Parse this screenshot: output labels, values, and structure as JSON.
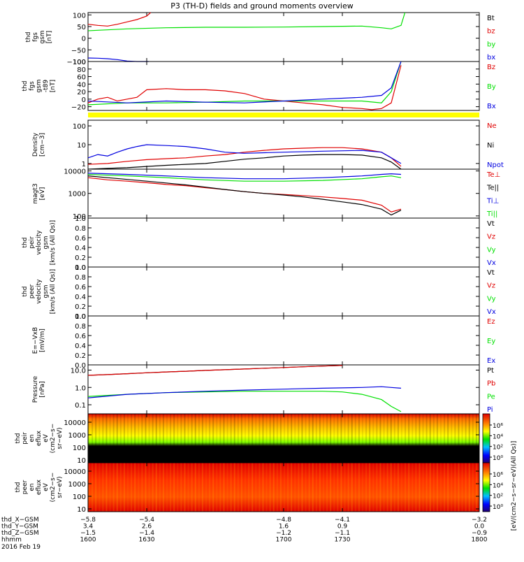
{
  "title": "P3 (TH-D) fields and ground moments overview",
  "colors": {
    "black": "#000000",
    "red": "#e00000",
    "green": "#00e000",
    "blue": "#0000e0",
    "yellow": "#ffff00"
  },
  "chart_data": [
    {
      "type": "line",
      "ylabel": [
        "thd",
        "fgs",
        "gsm",
        "[nT]"
      ],
      "yticks": [
        "100",
        "50",
        "0",
        "−50",
        "−100"
      ],
      "ylim": [
        -100,
        110
      ],
      "legend": [
        {
          "name": "Bt",
          "color": "black"
        },
        {
          "name": "bz",
          "color": "red"
        },
        {
          "name": "by",
          "color": "green"
        },
        {
          "name": "bx",
          "color": "blue"
        }
      ],
      "series": [
        {
          "name": "bz",
          "color": "red",
          "x": [
            1600,
            1605,
            1610,
            1615,
            1620,
            1625,
            1630,
            1632
          ],
          "y": [
            60,
            55,
            52,
            60,
            70,
            80,
            95,
            110
          ]
        },
        {
          "name": "by",
          "color": "green",
          "x": [
            1600,
            1620,
            1640,
            1660,
            1680,
            1700,
            1720,
            1740,
            1750,
            1755,
            1760,
            1762
          ],
          "y": [
            32,
            40,
            45,
            47,
            47,
            48,
            50,
            52,
            45,
            40,
            55,
            110
          ]
        },
        {
          "name": "bx",
          "color": "blue",
          "x": [
            1600,
            1605,
            1610,
            1615,
            1620,
            1625,
            1630,
            1631
          ],
          "y": [
            -85,
            -86,
            -88,
            -92,
            -98,
            -100,
            -100,
            -100
          ]
        }
      ]
    },
    {
      "type": "line",
      "ylabel": [
        "thd",
        "fgs",
        "gsm",
        "-t89",
        "[nT]"
      ],
      "yticks": [
        "100",
        "80",
        "60",
        "40",
        "20",
        "0",
        "−20"
      ],
      "ylim": [
        -30,
        100
      ],
      "legend": [
        {
          "name": "Bz",
          "color": "red"
        },
        {
          "name": "By",
          "color": "green"
        },
        {
          "name": "Bx",
          "color": "blue"
        }
      ],
      "series": [
        {
          "name": "Bz",
          "color": "red",
          "x": [
            1600,
            1605,
            1610,
            1615,
            1620,
            1625,
            1630,
            1640,
            1650,
            1660,
            1670,
            1680,
            1690,
            1700,
            1710,
            1720,
            1730,
            1740,
            1745,
            1750,
            1755,
            1760
          ],
          "y": [
            -10,
            0,
            5,
            -5,
            0,
            5,
            25,
            28,
            25,
            25,
            22,
            15,
            0,
            -5,
            -10,
            -15,
            -22,
            -25,
            -28,
            -25,
            -10,
            90
          ]
        },
        {
          "name": "By",
          "color": "green",
          "x": [
            1600,
            1620,
            1640,
            1660,
            1680,
            1700,
            1720,
            1740,
            1750,
            1755,
            1760
          ],
          "y": [
            -15,
            -10,
            -10,
            -8,
            -5,
            -5,
            -5,
            -5,
            -10,
            20,
            100
          ]
        },
        {
          "name": "Bx",
          "color": "blue",
          "x": [
            1600,
            1620,
            1640,
            1660,
            1680,
            1700,
            1720,
            1740,
            1750,
            1755,
            1760
          ],
          "y": [
            -5,
            -10,
            -5,
            -8,
            -10,
            -5,
            0,
            5,
            10,
            30,
            100
          ]
        }
      ]
    },
    {
      "type": "line",
      "scale": "log",
      "ylabel": [
        "Density",
        "[cm−3]"
      ],
      "yticks": [
        "100",
        "10",
        "1"
      ],
      "ylim": [
        0.5,
        200
      ],
      "legend": [
        {
          "name": "Ne",
          "color": "red"
        },
        {
          "name": "Ni",
          "color": "black"
        },
        {
          "name": "Npot",
          "color": "blue"
        }
      ],
      "series": [
        {
          "name": "Ne",
          "color": "red",
          "x": [
            1600,
            1610,
            1620,
            1630,
            1640,
            1650,
            1660,
            1670,
            1680,
            1690,
            1700,
            1710,
            1720,
            1730,
            1740,
            1750,
            1755,
            1760
          ],
          "y": [
            0.9,
            1.0,
            1.3,
            1.6,
            1.8,
            2,
            2.5,
            3,
            4,
            5,
            6,
            6.5,
            7,
            7,
            6,
            4,
            2,
            0.7
          ]
        },
        {
          "name": "Ni",
          "color": "black",
          "x": [
            1600,
            1610,
            1620,
            1630,
            1640,
            1650,
            1660,
            1670,
            1680,
            1690,
            1700,
            1710,
            1720,
            1730,
            1740,
            1750,
            1755,
            1760
          ],
          "y": [
            0.5,
            0.55,
            0.6,
            0.7,
            0.8,
            0.9,
            1,
            1.3,
            1.7,
            2,
            2.5,
            2.8,
            3,
            3,
            2.8,
            2,
            1.2,
            0.5
          ]
        },
        {
          "name": "Npot",
          "color": "blue",
          "x": [
            1600,
            1605,
            1610,
            1615,
            1620,
            1625,
            1630,
            1640,
            1650,
            1660,
            1670,
            1680,
            1700,
            1720,
            1740,
            1750,
            1755,
            1760
          ],
          "y": [
            2,
            3,
            2.5,
            4,
            6,
            8,
            10,
            9,
            8,
            6,
            4,
            3.5,
            4,
            4.5,
            5,
            4,
            2,
            1
          ]
        }
      ]
    },
    {
      "type": "line",
      "scale": "log",
      "ylabel": [
        "magt3",
        "[eV]"
      ],
      "yticks": [
        "10000",
        "1000",
        "100"
      ],
      "ylim": [
        80,
        12000
      ],
      "legend": [
        {
          "name": "Te⊥",
          "color": "red"
        },
        {
          "name": "Te||",
          "color": "black"
        },
        {
          "name": "Ti⊥",
          "color": "blue"
        },
        {
          "name": "Ti||",
          "color": "green"
        }
      ],
      "series": [
        {
          "name": "Te⊥",
          "color": "red",
          "x": [
            1600,
            1610,
            1620,
            1630,
            1640,
            1650,
            1660,
            1670,
            1680,
            1690,
            1700,
            1710,
            1720,
            1730,
            1740,
            1750,
            1755,
            1760
          ],
          "y": [
            5000,
            4000,
            3500,
            3000,
            2500,
            2200,
            1800,
            1500,
            1200,
            1000,
            900,
            800,
            700,
            600,
            500,
            300,
            150,
            200
          ]
        },
        {
          "name": "Te||",
          "color": "black",
          "x": [
            1600,
            1610,
            1620,
            1630,
            1640,
            1650,
            1660,
            1670,
            1680,
            1690,
            1700,
            1710,
            1720,
            1730,
            1740,
            1750,
            1755,
            1760
          ],
          "y": [
            6000,
            5000,
            4200,
            3500,
            2900,
            2400,
            1900,
            1500,
            1200,
            1000,
            850,
            700,
            550,
            420,
            320,
            200,
            110,
            180
          ]
        },
        {
          "name": "Ti⊥",
          "color": "blue",
          "x": [
            1600,
            1620,
            1640,
            1660,
            1680,
            1700,
            1720,
            1740,
            1750,
            1755,
            1760
          ],
          "y": [
            8000,
            7000,
            6000,
            5000,
            4500,
            4500,
            5000,
            6000,
            7000,
            7500,
            7000
          ]
        },
        {
          "name": "Ti||",
          "color": "green",
          "x": [
            1600,
            1620,
            1640,
            1660,
            1680,
            1700,
            1720,
            1740,
            1750,
            1755,
            1760
          ],
          "y": [
            7000,
            6000,
            5000,
            4000,
            3500,
            3500,
            3800,
            4500,
            5500,
            6000,
            5000
          ]
        }
      ]
    },
    {
      "type": "line",
      "ylabel": [
        "thd",
        "peir",
        "velocity",
        "gsm",
        "[km/s (All Qs)]"
      ],
      "yticks": [
        "1.0",
        "0.8",
        "0.6",
        "0.4",
        "0.2",
        "0.0"
      ],
      "ylim": [
        0,
        1
      ],
      "legend": [
        {
          "name": "Vt",
          "color": "black"
        },
        {
          "name": "Vz",
          "color": "red"
        },
        {
          "name": "Vy",
          "color": "green"
        },
        {
          "name": "Vx",
          "color": "blue"
        }
      ],
      "series": []
    },
    {
      "type": "line",
      "ylabel": [
        "thd",
        "peer",
        "velocity",
        "gsm",
        "[km/s (All Qs)]"
      ],
      "yticks": [
        "1.0",
        "0.8",
        "0.6",
        "0.4",
        "0.2",
        "0.0"
      ],
      "ylim": [
        0,
        1
      ],
      "legend": [
        {
          "name": "Vt",
          "color": "black"
        },
        {
          "name": "Vz",
          "color": "red"
        },
        {
          "name": "Vy",
          "color": "green"
        },
        {
          "name": "Vx",
          "color": "blue"
        }
      ],
      "series": []
    },
    {
      "type": "line",
      "ylabel": [
        "E=−VxB",
        "[mV/m]"
      ],
      "yticks": [
        "1.0",
        "0.8",
        "0.6",
        "0.4",
        "0.2",
        "0.0"
      ],
      "ylim": [
        0,
        1
      ],
      "legend": [
        {
          "name": "Ez",
          "color": "red"
        },
        {
          "name": "Ey",
          "color": "green"
        },
        {
          "name": "Ex",
          "color": "blue"
        }
      ],
      "series": []
    },
    {
      "type": "line",
      "scale": "log",
      "ylabel": [
        "Pressure",
        "[nPa]"
      ],
      "yticks": [
        "10.0",
        "1.0",
        "0.1"
      ],
      "ylim": [
        0.03,
        20
      ],
      "legend": [
        {
          "name": "Pt",
          "color": "black"
        },
        {
          "name": "Pb",
          "color": "red"
        },
        {
          "name": "Pe",
          "color": "green"
        },
        {
          "name": "Pi",
          "color": "blue"
        }
      ],
      "series": [
        {
          "name": "Pt",
          "color": "black",
          "x": [
            1600,
            1610,
            1620,
            1630,
            1640,
            1650,
            1660,
            1670,
            1680,
            1690,
            1700,
            1710,
            1720,
            1730
          ],
          "y": [
            5,
            5.5,
            6.2,
            7,
            7.8,
            8.6,
            9.6,
            10.5,
            11.6,
            12.8,
            14,
            15.5,
            17,
            18.5
          ]
        },
        {
          "name": "Pb",
          "color": "red",
          "x": [
            1600,
            1610,
            1620,
            1630,
            1640,
            1650,
            1660,
            1670,
            1680,
            1690,
            1700,
            1710,
            1720,
            1730
          ],
          "y": [
            5,
            5.5,
            6.2,
            7,
            7.8,
            8.6,
            9.6,
            10.5,
            11.6,
            12.8,
            14,
            15.5,
            17,
            18.5
          ]
        },
        {
          "name": "Pe",
          "color": "green",
          "x": [
            1600,
            1620,
            1640,
            1660,
            1680,
            1700,
            1720,
            1730,
            1740,
            1750,
            1755,
            1760
          ],
          "y": [
            0.3,
            0.4,
            0.5,
            0.55,
            0.6,
            0.6,
            0.6,
            0.55,
            0.4,
            0.2,
            0.08,
            0.04
          ]
        },
        {
          "name": "Pi",
          "color": "blue",
          "x": [
            1600,
            1620,
            1640,
            1660,
            1680,
            1700,
            1720,
            1740,
            1750,
            1755,
            1760
          ],
          "y": [
            0.25,
            0.4,
            0.5,
            0.6,
            0.7,
            0.8,
            0.9,
            1.0,
            1.1,
            1.0,
            0.9
          ]
        }
      ]
    },
    {
      "type": "heatmap",
      "ylabel": [
        "thd",
        "peir",
        "en",
        "eflux",
        "eV",
        "(cm2−s−",
        "sr−eV)"
      ],
      "yticks": [
        "10000",
        "1000",
        "100",
        "10"
      ],
      "colorbar_ticks": [
        "10⁶",
        "10⁴",
        "10²",
        "10⁰"
      ],
      "colorbar_label": "[eV/(cm2−s−sr−eV)(All Qs)]"
    },
    {
      "type": "heatmap",
      "ylabel": [
        "thd",
        "peer",
        "en",
        "eflux",
        "eV",
        "(cm2−s−",
        "sr−eV)"
      ],
      "yticks": [
        "10000",
        "1000",
        "100",
        "10"
      ],
      "colorbar_ticks": [
        "10⁶",
        "10⁴",
        "10²",
        "10⁰"
      ]
    }
  ],
  "xaxis": {
    "rows": [
      {
        "label": "thd_X−GSM",
        "values": [
          "−5.8",
          "−5.4",
          "−4.8",
          "−4.1",
          "−3.2"
        ]
      },
      {
        "label": "thd_Y−GSM",
        "values": [
          "3.4",
          "2.6",
          "1.6",
          "0.9",
          "0.0"
        ]
      },
      {
        "label": "thd_Z−GSM",
        "values": [
          "−1.5",
          "−1.4",
          "−1.2",
          "−1.1",
          "−0.9"
        ]
      },
      {
        "label": "hhmm",
        "values": [
          "1600",
          "1630",
          "1700",
          "1730",
          "1800"
        ]
      }
    ],
    "ticks": [
      1600,
      1630,
      1700,
      1730,
      1800
    ],
    "date": "2016 Feb 19"
  }
}
